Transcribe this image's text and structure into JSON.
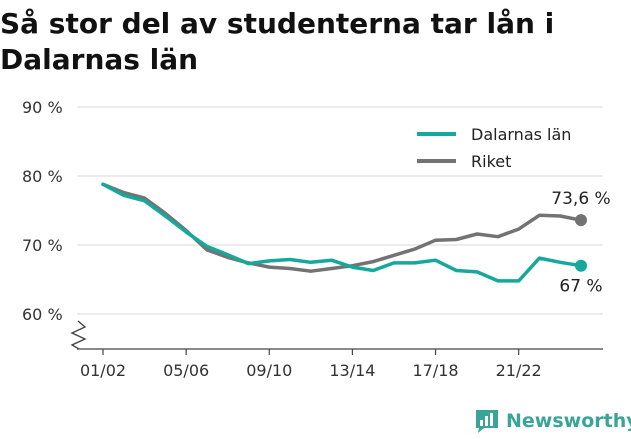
{
  "title": "Så stor del av studenterna tar lån i Dalarnas län",
  "brand": {
    "name": "Newsworthy"
  },
  "colors": {
    "dalarna": "#16a89c",
    "riket": "#737373",
    "grid": "#d9d9d9",
    "axis": "#444444",
    "brand": "#3aa597"
  },
  "chart_data": {
    "type": "line",
    "title": "Så stor del av studenterna tar lån i Dalarnas län",
    "x": [
      "01/02",
      "02/03",
      "03/04",
      "04/05",
      "05/06",
      "06/07",
      "07/08",
      "08/09",
      "09/10",
      "10/11",
      "11/12",
      "12/13",
      "13/14",
      "14/15",
      "15/16",
      "16/17",
      "17/18",
      "18/19",
      "19/20",
      "20/21",
      "21/22",
      "22/23",
      "23/24",
      "24/25"
    ],
    "x_tick_labels": [
      "01/02",
      "05/06",
      "09/10",
      "13/14",
      "17/18",
      "21/22"
    ],
    "x_tick_indices": [
      0,
      4,
      8,
      12,
      16,
      20
    ],
    "y_tick_values": [
      60,
      70,
      80,
      90
    ],
    "y_tick_labels": [
      "60 %",
      "70 %",
      "80 %",
      "90 %"
    ],
    "ylim": [
      55,
      90
    ],
    "grid": true,
    "legend_position": "top-right",
    "series": [
      {
        "name": "Dalarnas län",
        "color": "#16a89c",
        "values": [
          78.8,
          77.2,
          76.4,
          74.2,
          71.9,
          69.8,
          68.6,
          67.3,
          67.7,
          67.9,
          67.5,
          67.8,
          66.8,
          66.3,
          67.4,
          67.4,
          67.8,
          66.3,
          66.1,
          64.8,
          64.8,
          68.1,
          67.5,
          67.0
        ],
        "end_label": "67 %"
      },
      {
        "name": "Riket",
        "color": "#737373",
        "values": [
          78.8,
          77.6,
          76.8,
          74.6,
          72.1,
          69.3,
          68.2,
          67.4,
          66.8,
          66.6,
          66.2,
          66.6,
          67.0,
          67.6,
          68.5,
          69.4,
          70.7,
          70.8,
          71.6,
          71.2,
          72.3,
          74.3,
          74.2,
          73.6
        ],
        "end_label": "73,6 %"
      }
    ]
  }
}
